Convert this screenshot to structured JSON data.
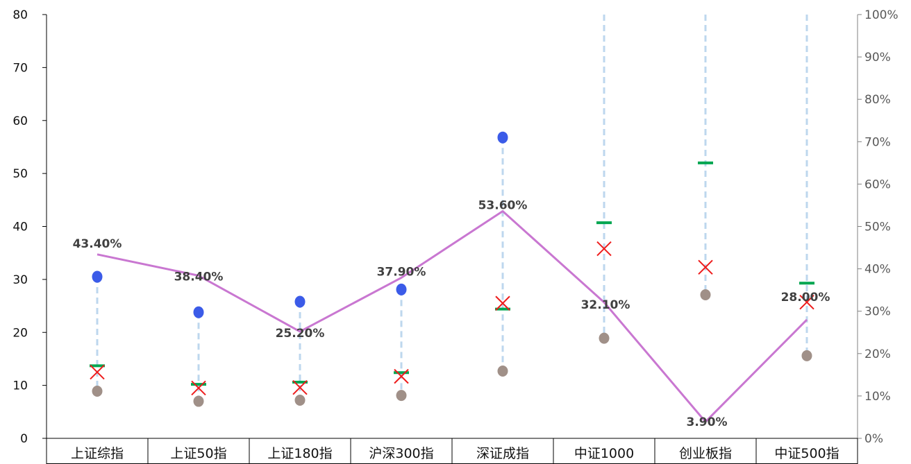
{
  "chart_data": {
    "type": "line",
    "title": "",
    "categories": [
      "上证综指",
      "上证50指",
      "上证180指",
      "沪深300指",
      "深证成指",
      "中证1000",
      "创业板指",
      "中证500指"
    ],
    "left_axis": {
      "ylim": [
        0,
        80
      ],
      "ticks": [
        "0",
        "10",
        "20",
        "30",
        "40",
        "50",
        "60",
        "70",
        "80"
      ]
    },
    "right_axis": {
      "ylim": [
        0,
        1
      ],
      "ticks": [
        "0%",
        "10%",
        "20%",
        "30%",
        "40%",
        "50%",
        "60%",
        "70%",
        "80%",
        "90%",
        "100%"
      ]
    },
    "series": [
      {
        "kind": "range-high",
        "axis": "left",
        "values": [
          30.5,
          23.8,
          25.8,
          28.1,
          56.8,
          null,
          null,
          null
        ]
      },
      {
        "kind": "range-low",
        "axis": "left",
        "values": [
          8.9,
          7.0,
          7.2,
          8.1,
          12.7,
          18.9,
          27.1,
          15.6
        ]
      },
      {
        "kind": "dash-marker",
        "axis": "left",
        "values": [
          13.7,
          10.2,
          10.6,
          12.4,
          24.4,
          40.7,
          52.0,
          29.3
        ]
      },
      {
        "kind": "x-marker",
        "axis": "left",
        "values": [
          12.5,
          9.5,
          9.6,
          11.7,
          25.5,
          35.8,
          32.3,
          25.7
        ]
      },
      {
        "kind": "line",
        "axis": "right",
        "values": [
          0.434,
          0.384,
          0.252,
          0.379,
          0.536,
          0.321,
          0.039,
          0.28
        ]
      }
    ],
    "line_labels": [
      "43.40%",
      "38.40%",
      "25.20%",
      "37.90%",
      "53.60%",
      "32.10%",
      "3.90%",
      "28.00%"
    ],
    "colors": {
      "range_line": "#bdd7ee",
      "high_dot": "#3b5be8",
      "low_dot": "#a09088",
      "dash_marker": "#00a651",
      "x_marker": "#ee1c1c",
      "pct_line": "#c977d1",
      "axis": "#808080"
    },
    "grid": false,
    "legend": "none"
  }
}
